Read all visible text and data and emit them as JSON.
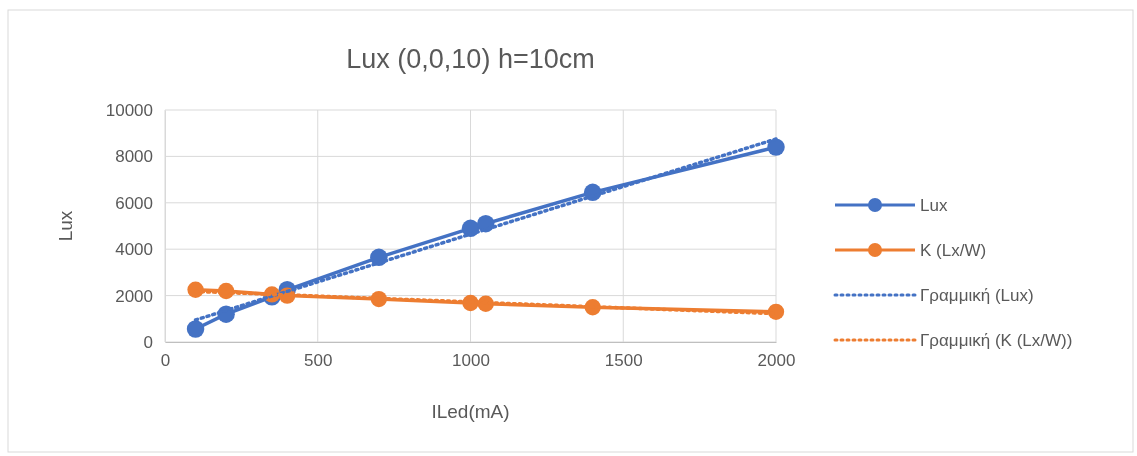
{
  "chart_data": {
    "type": "line",
    "title": "Lux (0,0,10) h=10cm",
    "xlabel": "ILed(mA)",
    "ylabel": "Lux",
    "x": [
      100,
      200,
      350,
      400,
      700,
      1000,
      1050,
      1400,
      2000
    ],
    "series": [
      {
        "name": "Lux",
        "color": "#4472c4",
        "marker": "circle",
        "line_style": "solid",
        "values": [
          560,
          1200,
          1950,
          2250,
          3650,
          4900,
          5100,
          6450,
          8400
        ]
      },
      {
        "name": "K (Lx/W)",
        "color": "#ed7d31",
        "marker": "circle",
        "line_style": "solid",
        "values": [
          2250,
          2200,
          2050,
          2000,
          1850,
          1680,
          1650,
          1500,
          1300
        ]
      },
      {
        "name": "Γραμμική (Lux)",
        "color": "#4472c4",
        "marker": "none",
        "line_style": "dotted",
        "values": [
          950,
          1360,
          1980,
          2180,
          3410,
          4650,
          4850,
          6290,
          8750
        ]
      },
      {
        "name": "Γραμμική (K (Lx/W))",
        "color": "#ed7d31",
        "marker": "none",
        "line_style": "dotted",
        "values": [
          2180,
          2130,
          2050,
          2030,
          1880,
          1730,
          1700,
          1520,
          1220
        ]
      }
    ],
    "xlim": [
      0,
      2000
    ],
    "xticks": [
      0,
      500,
      1000,
      1500,
      2000
    ],
    "ylim": [
      0,
      10000
    ],
    "yticks": [
      0,
      2000,
      4000,
      6000,
      8000,
      10000
    ],
    "grid": true,
    "legend": "right"
  }
}
